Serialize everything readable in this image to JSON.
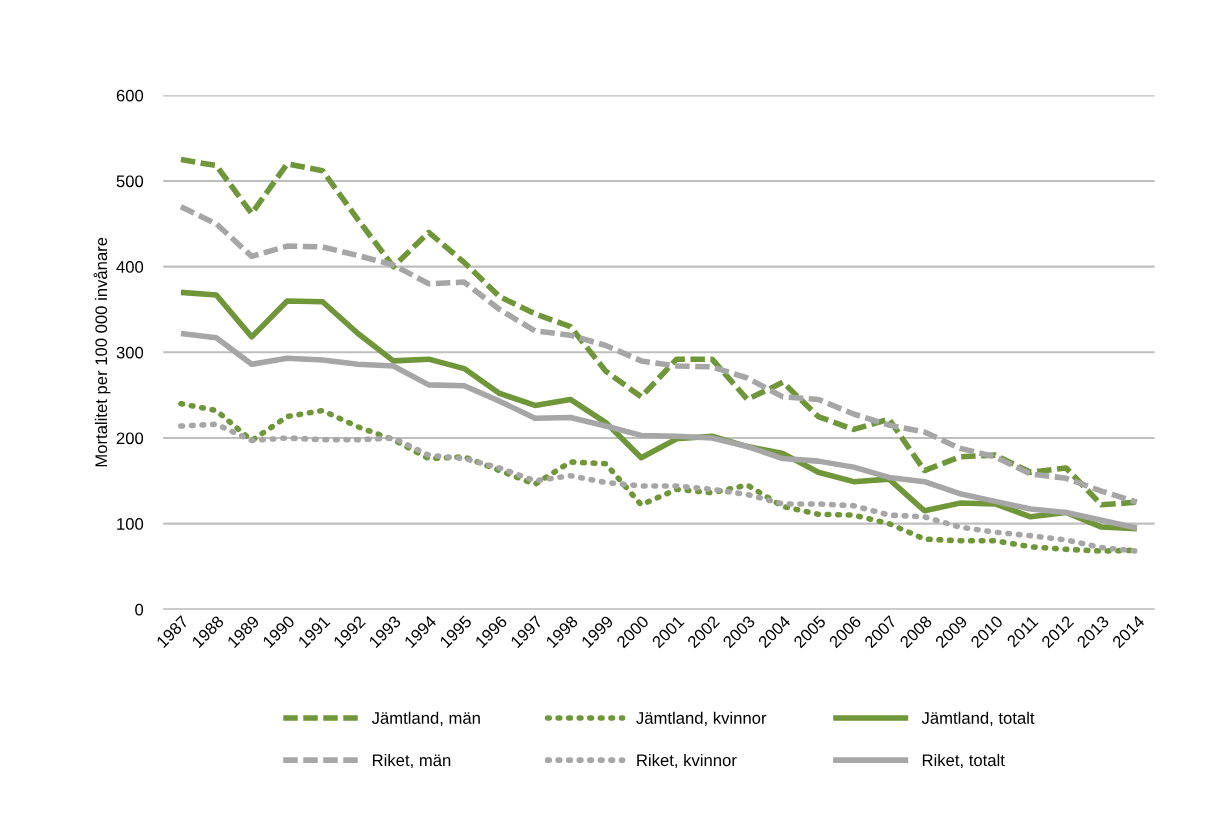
{
  "chart_data": {
    "type": "line",
    "ylabel": "Mortalitet per 100 000 invånare",
    "categories": [
      "1987",
      "1988",
      "1989",
      "1990",
      "1991",
      "1992",
      "1993",
      "1994",
      "1995",
      "1996",
      "1997",
      "1998",
      "1999",
      "2000",
      "2001",
      "2002",
      "2003",
      "2004",
      "2005",
      "2006",
      "2007",
      "2008",
      "2009",
      "2010",
      "2011",
      "2012",
      "2013",
      "2014"
    ],
    "ylim": [
      0,
      600
    ],
    "yticks": [
      0,
      100,
      200,
      300,
      400,
      500,
      600
    ],
    "grid": "y",
    "legend": "bottom",
    "marker": "none",
    "series": [
      {
        "name": "Jämtland, män",
        "color": "#70963a",
        "line_style": "dashed",
        "values": [
          525,
          518,
          462,
          520,
          512,
          455,
          400,
          440,
          405,
          365,
          345,
          330,
          278,
          248,
          292,
          292,
          245,
          265,
          225,
          210,
          222,
          162,
          178,
          180,
          160,
          165,
          122,
          125
        ]
      },
      {
        "name": "Jämtland, kvinnor",
        "color": "#70963a",
        "line_style": "dotted",
        "values": [
          240,
          232,
          197,
          225,
          232,
          213,
          198,
          176,
          178,
          162,
          146,
          172,
          170,
          122,
          140,
          136,
          145,
          120,
          111,
          110,
          100,
          82,
          80,
          80,
          73,
          70,
          68,
          69
        ]
      },
      {
        "name": "Jämtland, totalt",
        "color": "#70963a",
        "line_style": "solid",
        "values": [
          370,
          367,
          318,
          360,
          359,
          322,
          290,
          292,
          281,
          252,
          238,
          245,
          218,
          177,
          199,
          202,
          190,
          182,
          160,
          149,
          152,
          115,
          124,
          123,
          108,
          113,
          96,
          94
        ]
      },
      {
        "name": "Riket, män",
        "color": "#a6a6a6",
        "line_style": "dashed",
        "values": [
          470,
          450,
          412,
          424,
          423,
          413,
          402,
          380,
          382,
          350,
          325,
          320,
          308,
          290,
          284,
          283,
          270,
          248,
          245,
          228,
          215,
          207,
          188,
          178,
          158,
          153,
          138,
          125
        ]
      },
      {
        "name": "Riket, kvinnor",
        "color": "#a6a6a6",
        "line_style": "dotted",
        "values": [
          214,
          216,
          197,
          200,
          198,
          198,
          200,
          180,
          176,
          165,
          150,
          156,
          148,
          144,
          144,
          140,
          134,
          123,
          123,
          121,
          110,
          108,
          96,
          90,
          86,
          81,
          72,
          68
        ]
      },
      {
        "name": "Riket, totalt",
        "color": "#a6a6a6",
        "line_style": "solid",
        "values": [
          322,
          317,
          286,
          293,
          291,
          286,
          284,
          262,
          261,
          243,
          223,
          224,
          214,
          203,
          202,
          200,
          190,
          176,
          173,
          166,
          154,
          149,
          135,
          126,
          117,
          113,
          104,
          95
        ]
      }
    ]
  }
}
